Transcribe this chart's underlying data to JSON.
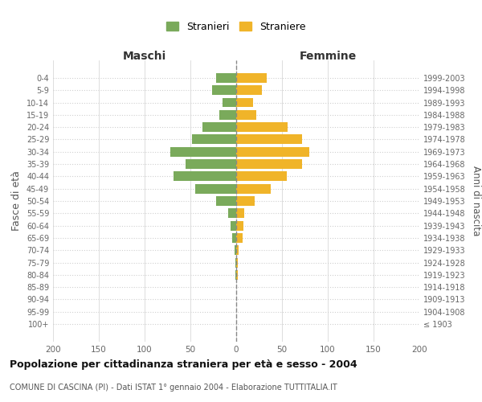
{
  "age_groups": [
    "100+",
    "95-99",
    "90-94",
    "85-89",
    "80-84",
    "75-79",
    "70-74",
    "65-69",
    "60-64",
    "55-59",
    "50-54",
    "45-49",
    "40-44",
    "35-39",
    "30-34",
    "25-29",
    "20-24",
    "15-19",
    "10-14",
    "5-9",
    "0-4"
  ],
  "birth_years": [
    "≤ 1903",
    "1904-1908",
    "1909-1913",
    "1914-1918",
    "1919-1923",
    "1924-1928",
    "1929-1933",
    "1934-1938",
    "1939-1943",
    "1944-1948",
    "1949-1953",
    "1954-1958",
    "1959-1963",
    "1964-1968",
    "1969-1973",
    "1974-1978",
    "1979-1983",
    "1984-1988",
    "1989-1993",
    "1994-1998",
    "1999-2003"
  ],
  "maschi": [
    0,
    0,
    0,
    0,
    1,
    1,
    2,
    4,
    6,
    9,
    22,
    45,
    68,
    55,
    72,
    48,
    37,
    18,
    15,
    26,
    22
  ],
  "femmine": [
    0,
    0,
    0,
    0,
    2,
    2,
    3,
    7,
    8,
    9,
    20,
    38,
    55,
    72,
    80,
    72,
    56,
    22,
    18,
    28,
    33
  ],
  "color_maschi": "#7aaa5b",
  "color_femmine": "#f0b429",
  "title": "Popolazione per cittadinanza straniera per età e sesso - 2004",
  "subtitle": "COMUNE DI CASCINA (PI) - Dati ISTAT 1° gennaio 2004 - Elaborazione TUTTITALIA.IT",
  "xlabel_left": "Maschi",
  "xlabel_right": "Femmine",
  "ylabel_left": "Fasce di età",
  "ylabel_right": "Anni di nascita",
  "legend_maschi": "Stranieri",
  "legend_femmine": "Straniere",
  "xlim": 200,
  "background_color": "#ffffff",
  "grid_color": "#d0d0d0"
}
